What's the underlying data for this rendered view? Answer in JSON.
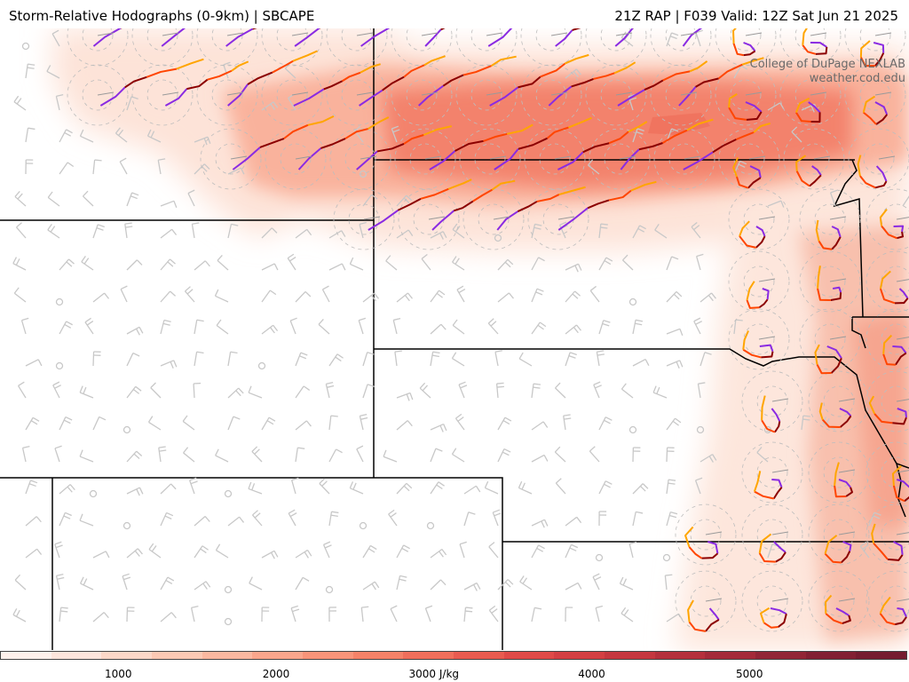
{
  "header": {
    "title_left": "Storm-Relative Hodographs (0-9km) | SBCAPE",
    "title_right": "21Z RAP | F039 Valid: 12Z Sat Jun 21 2025"
  },
  "credit": {
    "line1": "College of DuPage NEXLAB",
    "line2": "weather.cod.edu"
  },
  "colorbar": {
    "unit": "J/kg",
    "tick_labels": [
      "1000",
      "2000",
      "3000 J/kg",
      "4000",
      "5000"
    ],
    "tick_values": [
      1000,
      2000,
      3000,
      4000,
      5000
    ],
    "range": [
      250,
      6000
    ],
    "colors": [
      "#fff1ec",
      "#fee5dc",
      "#fdd8c8",
      "#fcc9b4",
      "#fbb8a0",
      "#faa68c",
      "#f89479",
      "#f58268",
      "#f06f5b",
      "#e95b50",
      "#e04a48",
      "#d43f43",
      "#c5373f",
      "#b5303c",
      "#a42a39",
      "#922536",
      "#822033",
      "#751c30"
    ]
  },
  "legend_colors": {
    "hodo_0_1km": "#8a2be2",
    "hodo_1_3km": "#8b0000",
    "hodo_3_6km": "#ff4500",
    "hodo_6_9km": "#ffa500",
    "barb": "#c8c8c8",
    "border": "#000000"
  },
  "icons": {
    "wind_barb": "wind-barb-icon",
    "calm_circle": "calm-wind-circle-icon"
  }
}
